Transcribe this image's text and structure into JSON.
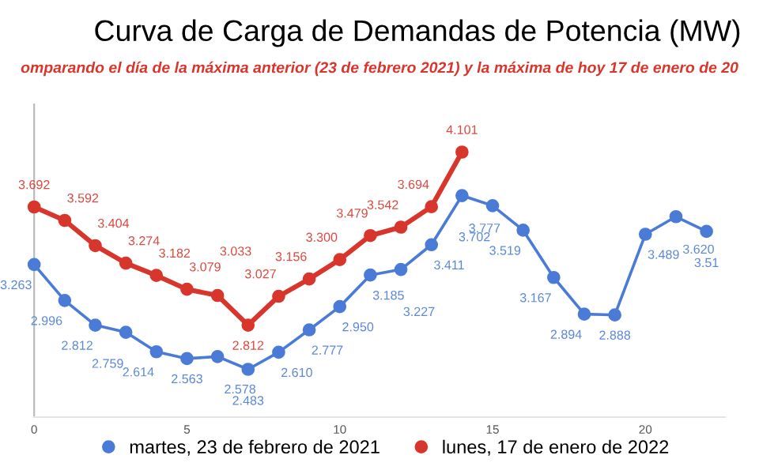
{
  "chart_data": {
    "type": "line",
    "title": "Curva de Carga de Demandas de Potencia (MW)",
    "subtitle": "omparando el día de la máxima anterior (23 de febrero 2021) y la máxima de hoy 17 de enero de 20",
    "x": [
      0,
      1,
      2,
      3,
      4,
      5,
      6,
      7,
      8,
      9,
      10,
      11,
      12,
      13,
      14,
      15,
      16,
      17,
      18,
      19,
      20,
      21,
      22
    ],
    "series": [
      {
        "name": "martes, 23 de febrero de 2021",
        "color": "#4a7bd6",
        "values": [
          3.263,
          2.996,
          2.812,
          2.759,
          2.614,
          2.563,
          2.578,
          2.483,
          2.61,
          2.777,
          2.95,
          3.185,
          3.227,
          3.411,
          3.777,
          3.702,
          3.519,
          3.167,
          2.894,
          2.888,
          3.489,
          3.62,
          3.51
        ],
        "value_labels": [
          "3.263",
          "2.996",
          "2.812",
          "2.759",
          "2.614",
          "2.563",
          "2.578",
          "2.483",
          "2.610",
          "2.777",
          "2.950",
          "3.185",
          "3.227",
          "3.411",
          "3.777",
          "3.702",
          "3.519",
          "3.167",
          "2.894",
          "2.888",
          "3.489",
          "3.620",
          "3.51"
        ]
      },
      {
        "name": "lunes, 17 de enero de 2022",
        "color": "#d8362c",
        "values": [
          3.692,
          3.592,
          3.404,
          3.274,
          3.182,
          3.079,
          3.033,
          2.812,
          3.027,
          3.156,
          3.3,
          3.479,
          3.542,
          3.694,
          4.101,
          null,
          null,
          null,
          null,
          null,
          null,
          null,
          null
        ],
        "value_labels": [
          "3.692",
          "3.592",
          "3.404",
          "3.274",
          "3.182",
          "3.079",
          "3.033",
          "2.812",
          "3.027",
          "3.156",
          "3.300",
          "3.479",
          "3.542",
          "3.694",
          "4.101",
          null,
          null,
          null,
          null,
          null,
          null,
          null,
          null
        ]
      }
    ],
    "xlim": [
      0,
      22.6
    ],
    "xticks": [
      0,
      5,
      10,
      15,
      20
    ],
    "tick_labels": "x",
    "marker": "circle",
    "line_style": "solid",
    "legend": "bottom",
    "grid": false
  }
}
